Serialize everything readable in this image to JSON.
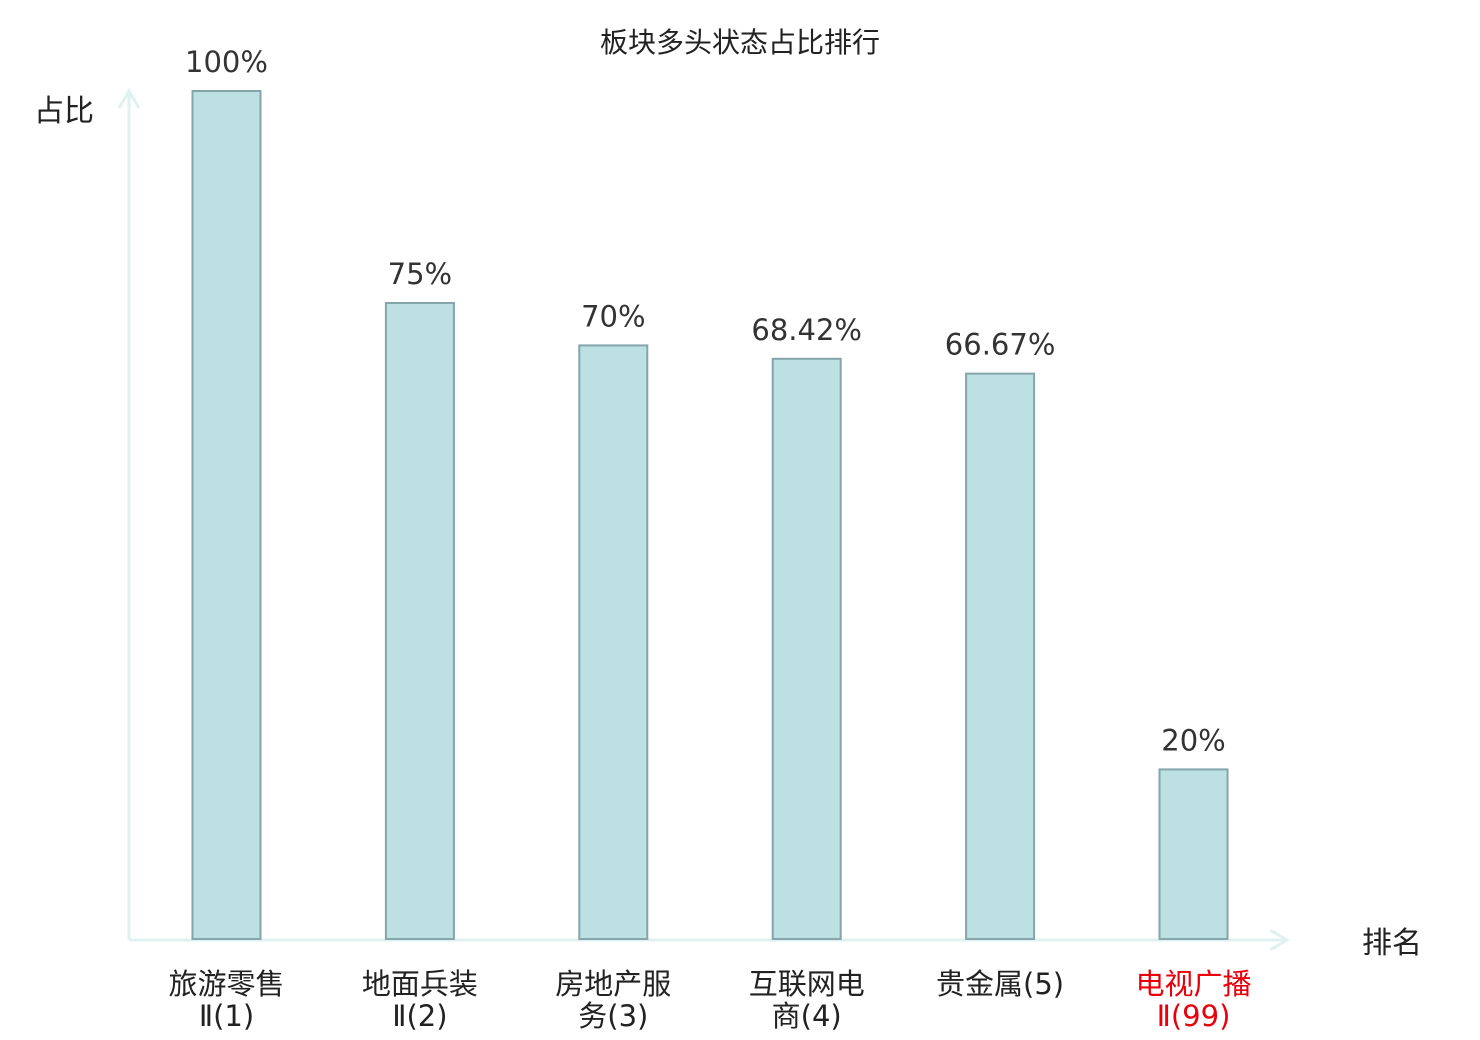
{
  "chart_data": {
    "type": "bar",
    "title": "板块多头状态占比排行",
    "xlabel": "排名",
    "ylabel": "占比",
    "ylim": [
      0,
      100
    ],
    "grid": false,
    "legend": "none",
    "categories": [
      {
        "line1": "旅游零售",
        "line2": "Ⅱ(1)",
        "highlight": false
      },
      {
        "line1": "地面兵装",
        "line2": "Ⅱ(2)",
        "highlight": false
      },
      {
        "line1": "房地产服",
        "line2": "务(3)",
        "highlight": false
      },
      {
        "line1": "互联网电",
        "line2": "商(4)",
        "highlight": false
      },
      {
        "line1": "贵金属(5)",
        "line2": "",
        "highlight": false
      },
      {
        "line1": "电视广播",
        "line2": "Ⅱ(99)",
        "highlight": true
      }
    ],
    "values": [
      100,
      75,
      70,
      68.42,
      66.67,
      20
    ],
    "value_labels": [
      "100%",
      "75%",
      "70%",
      "68.42%",
      "66.67%",
      "20%"
    ]
  },
  "colors": {
    "bar_fill": "#bde0e3",
    "bar_stroke": "#84a6aa",
    "axis": "#dff2ef",
    "text": "#222222",
    "value_text": "#333333",
    "highlight": "#e8000b"
  }
}
